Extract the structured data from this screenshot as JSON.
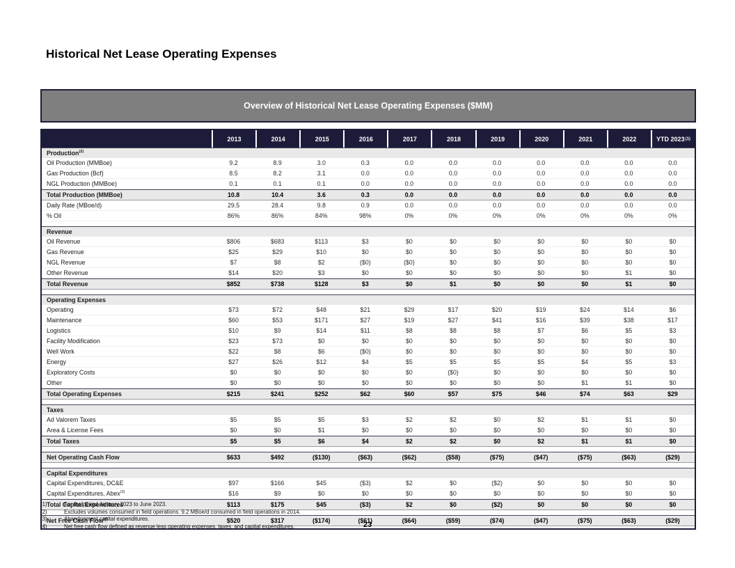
{
  "page": {
    "title": "Historical Net Lease Operating Expenses",
    "page_number": "23"
  },
  "table": {
    "header": "Overview of Historical Net Lease Operating Expenses ($MM)",
    "columns": [
      {
        "label": "2013"
      },
      {
        "label": "2014"
      },
      {
        "label": "2015"
      },
      {
        "label": "2016"
      },
      {
        "label": "2017"
      },
      {
        "label": "2018"
      },
      {
        "label": "2019"
      },
      {
        "label": "2020"
      },
      {
        "label": "2021"
      },
      {
        "label": "2022"
      },
      {
        "label": "YTD 2023",
        "sup": "(1)"
      }
    ],
    "rows": [
      {
        "type": "section",
        "label": "Production",
        "sup": "(2)"
      },
      {
        "type": "data",
        "label": "Oil Production (MMBoe)",
        "values": [
          "9.2",
          "8.9",
          "3.0",
          "0.3",
          "0.0",
          "0.0",
          "0.0",
          "0.0",
          "0.0",
          "0.0",
          "0.0"
        ]
      },
      {
        "type": "data",
        "label": "Gas Production (Bcf)",
        "values": [
          "8.5",
          "8.2",
          "3.1",
          "0.0",
          "0.0",
          "0.0",
          "0.0",
          "0.0",
          "0.0",
          "0.0",
          "0.0"
        ]
      },
      {
        "type": "data",
        "label": "NGL Production (MMBoe)",
        "values": [
          "0.1",
          "0.1",
          "0.1",
          "0.0",
          "0.0",
          "0.0",
          "0.0",
          "0.0",
          "0.0",
          "0.0",
          "0.0"
        ]
      },
      {
        "type": "total",
        "label": "Total Production (MMBoe)",
        "values": [
          "10.8",
          "10.4",
          "3.6",
          "0.3",
          "0.0",
          "0.0",
          "0.0",
          "0.0",
          "0.0",
          "0.0",
          "0.0"
        ]
      },
      {
        "type": "data",
        "label": "Daily Rate (MBoe/d)",
        "values": [
          "29.5",
          "28.4",
          "9.8",
          "0.9",
          "0.0",
          "0.0",
          "0.0",
          "0.0",
          "0.0",
          "0.0",
          "0.0"
        ]
      },
      {
        "type": "data",
        "label": "% Oil",
        "values": [
          "86%",
          "86%",
          "84%",
          "98%",
          "0%",
          "0%",
          "0%",
          "0%",
          "0%",
          "0%",
          "0%"
        ]
      },
      {
        "type": "spacer"
      },
      {
        "type": "section",
        "label": "Revenue"
      },
      {
        "type": "data",
        "label": "Oil Revenue",
        "values": [
          "$806",
          "$683",
          "$113",
          "$3",
          "$0",
          "$0",
          "$0",
          "$0",
          "$0",
          "$0",
          "$0"
        ]
      },
      {
        "type": "data",
        "label": "Gas Revenue",
        "values": [
          "$25",
          "$29",
          "$10",
          "$0",
          "$0",
          "$0",
          "$0",
          "$0",
          "$0",
          "$0",
          "$0"
        ]
      },
      {
        "type": "data",
        "label": "NGL Revenue",
        "values": [
          "$7",
          "$8",
          "$2",
          "($0)",
          "($0)",
          "$0",
          "$0",
          "$0",
          "$0",
          "$0",
          "$0"
        ]
      },
      {
        "type": "data",
        "label": "Other Revenue",
        "values": [
          "$14",
          "$20",
          "$3",
          "$0",
          "$0",
          "$0",
          "$0",
          "$0",
          "$0",
          "$1",
          "$0"
        ]
      },
      {
        "type": "total",
        "label": "Total Revenue",
        "values": [
          "$852",
          "$738",
          "$128",
          "$3",
          "$0",
          "$1",
          "$0",
          "$0",
          "$0",
          "$1",
          "$0"
        ]
      },
      {
        "type": "spacer"
      },
      {
        "type": "section",
        "label": "Operating Expenses"
      },
      {
        "type": "data",
        "label": "Operating",
        "values": [
          "$73",
          "$72",
          "$48",
          "$21",
          "$29",
          "$17",
          "$20",
          "$19",
          "$24",
          "$14",
          "$6"
        ]
      },
      {
        "type": "data",
        "label": "Maintenance",
        "values": [
          "$60",
          "$53",
          "$171",
          "$27",
          "$19",
          "$27",
          "$41",
          "$16",
          "$39",
          "$38",
          "$17"
        ]
      },
      {
        "type": "data",
        "label": "Logistics",
        "values": [
          "$10",
          "$9",
          "$14",
          "$11",
          "$8",
          "$8",
          "$8",
          "$7",
          "$6",
          "$5",
          "$3"
        ]
      },
      {
        "type": "data",
        "label": "Facility Modification",
        "values": [
          "$23",
          "$73",
          "$0",
          "$0",
          "$0",
          "$0",
          "$0",
          "$0",
          "$0",
          "$0",
          "$0"
        ]
      },
      {
        "type": "data",
        "label": "Well Work",
        "values": [
          "$22",
          "$8",
          "$6",
          "($0)",
          "$0",
          "$0",
          "$0",
          "$0",
          "$0",
          "$0",
          "$0"
        ]
      },
      {
        "type": "data",
        "label": "Energy",
        "values": [
          "$27",
          "$26",
          "$12",
          "$4",
          "$5",
          "$5",
          "$5",
          "$5",
          "$4",
          "$5",
          "$3"
        ]
      },
      {
        "type": "data",
        "label": "Exploratory Costs",
        "values": [
          "$0",
          "$0",
          "$0",
          "$0",
          "$0",
          "($0)",
          "$0",
          "$0",
          "$0",
          "$0",
          "$0"
        ]
      },
      {
        "type": "data",
        "label": "Other",
        "values": [
          "$0",
          "$0",
          "$0",
          "$0",
          "$0",
          "$0",
          "$0",
          "$0",
          "$1",
          "$1",
          "$0"
        ]
      },
      {
        "type": "total",
        "label": "Total Operating Expenses",
        "values": [
          "$215",
          "$241",
          "$252",
          "$62",
          "$60",
          "$57",
          "$75",
          "$46",
          "$74",
          "$63",
          "$29"
        ]
      },
      {
        "type": "spacer"
      },
      {
        "type": "section",
        "label": "Taxes"
      },
      {
        "type": "data",
        "label": "Ad Valorem Taxes",
        "values": [
          "$5",
          "$5",
          "$5",
          "$3",
          "$2",
          "$2",
          "$0",
          "$2",
          "$1",
          "$1",
          "$0"
        ]
      },
      {
        "type": "data",
        "label": "Area & License Fees",
        "values": [
          "$0",
          "$0",
          "$1",
          "$0",
          "$0",
          "$0",
          "$0",
          "$0",
          "$0",
          "$0",
          "$0"
        ]
      },
      {
        "type": "total",
        "label": "Total Taxes",
        "values": [
          "$5",
          "$5",
          "$6",
          "$4",
          "$2",
          "$2",
          "$0",
          "$2",
          "$1",
          "$1",
          "$0"
        ]
      },
      {
        "type": "spacer"
      },
      {
        "type": "total",
        "label": "Net Operating Cash Flow",
        "values": [
          "$633",
          "$492",
          "($130)",
          "($63)",
          "($62)",
          "($58)",
          "($75)",
          "($47)",
          "($75)",
          "($63)",
          "($29)"
        ]
      },
      {
        "type": "spacer"
      },
      {
        "type": "section",
        "label": "Capital Expenditures"
      },
      {
        "type": "data",
        "label": "Capital Expenditures, DC&E",
        "values": [
          "$97",
          "$166",
          "$45",
          "($3)",
          "$2",
          "$0",
          "($2)",
          "$0",
          "$0",
          "$0",
          "$0"
        ]
      },
      {
        "type": "data",
        "label": "Capital Expenditures, Abex",
        "sup": "(3)",
        "values": [
          "$16",
          "$9",
          "$0",
          "$0",
          "$0",
          "$0",
          "$0",
          "$0",
          "$0",
          "$0",
          "$0"
        ]
      },
      {
        "type": "total",
        "label": "Total Capital Expenditures",
        "values": [
          "$113",
          "$175",
          "$45",
          "($3)",
          "$2",
          "$0",
          "($2)",
          "$0",
          "$0",
          "$0",
          "$0"
        ]
      },
      {
        "type": "spacer"
      },
      {
        "type": "total",
        "label": "Net Free Cash Flow",
        "sup": "(4)",
        "values": [
          "$520",
          "$317",
          "($174)",
          "($61)",
          "($64)",
          "($59)",
          "($74)",
          "($47)",
          "($75)",
          "($63)",
          "($29)"
        ]
      }
    ]
  },
  "footnotes": [
    {
      "num": "(1)",
      "text": "For the period January 2023 to June 2023."
    },
    {
      "num": "(2)",
      "text": "Excludes volumes consumed in field operations. 9.2 MBoe/d consumed in field operations in 2014."
    },
    {
      "num": "(3)",
      "text": "Abandonment capital expenditures."
    },
    {
      "num": "(4)",
      "text": "Net free cash flow defined as revenue less operating expenses, taxes, and capital expenditures."
    }
  ]
}
